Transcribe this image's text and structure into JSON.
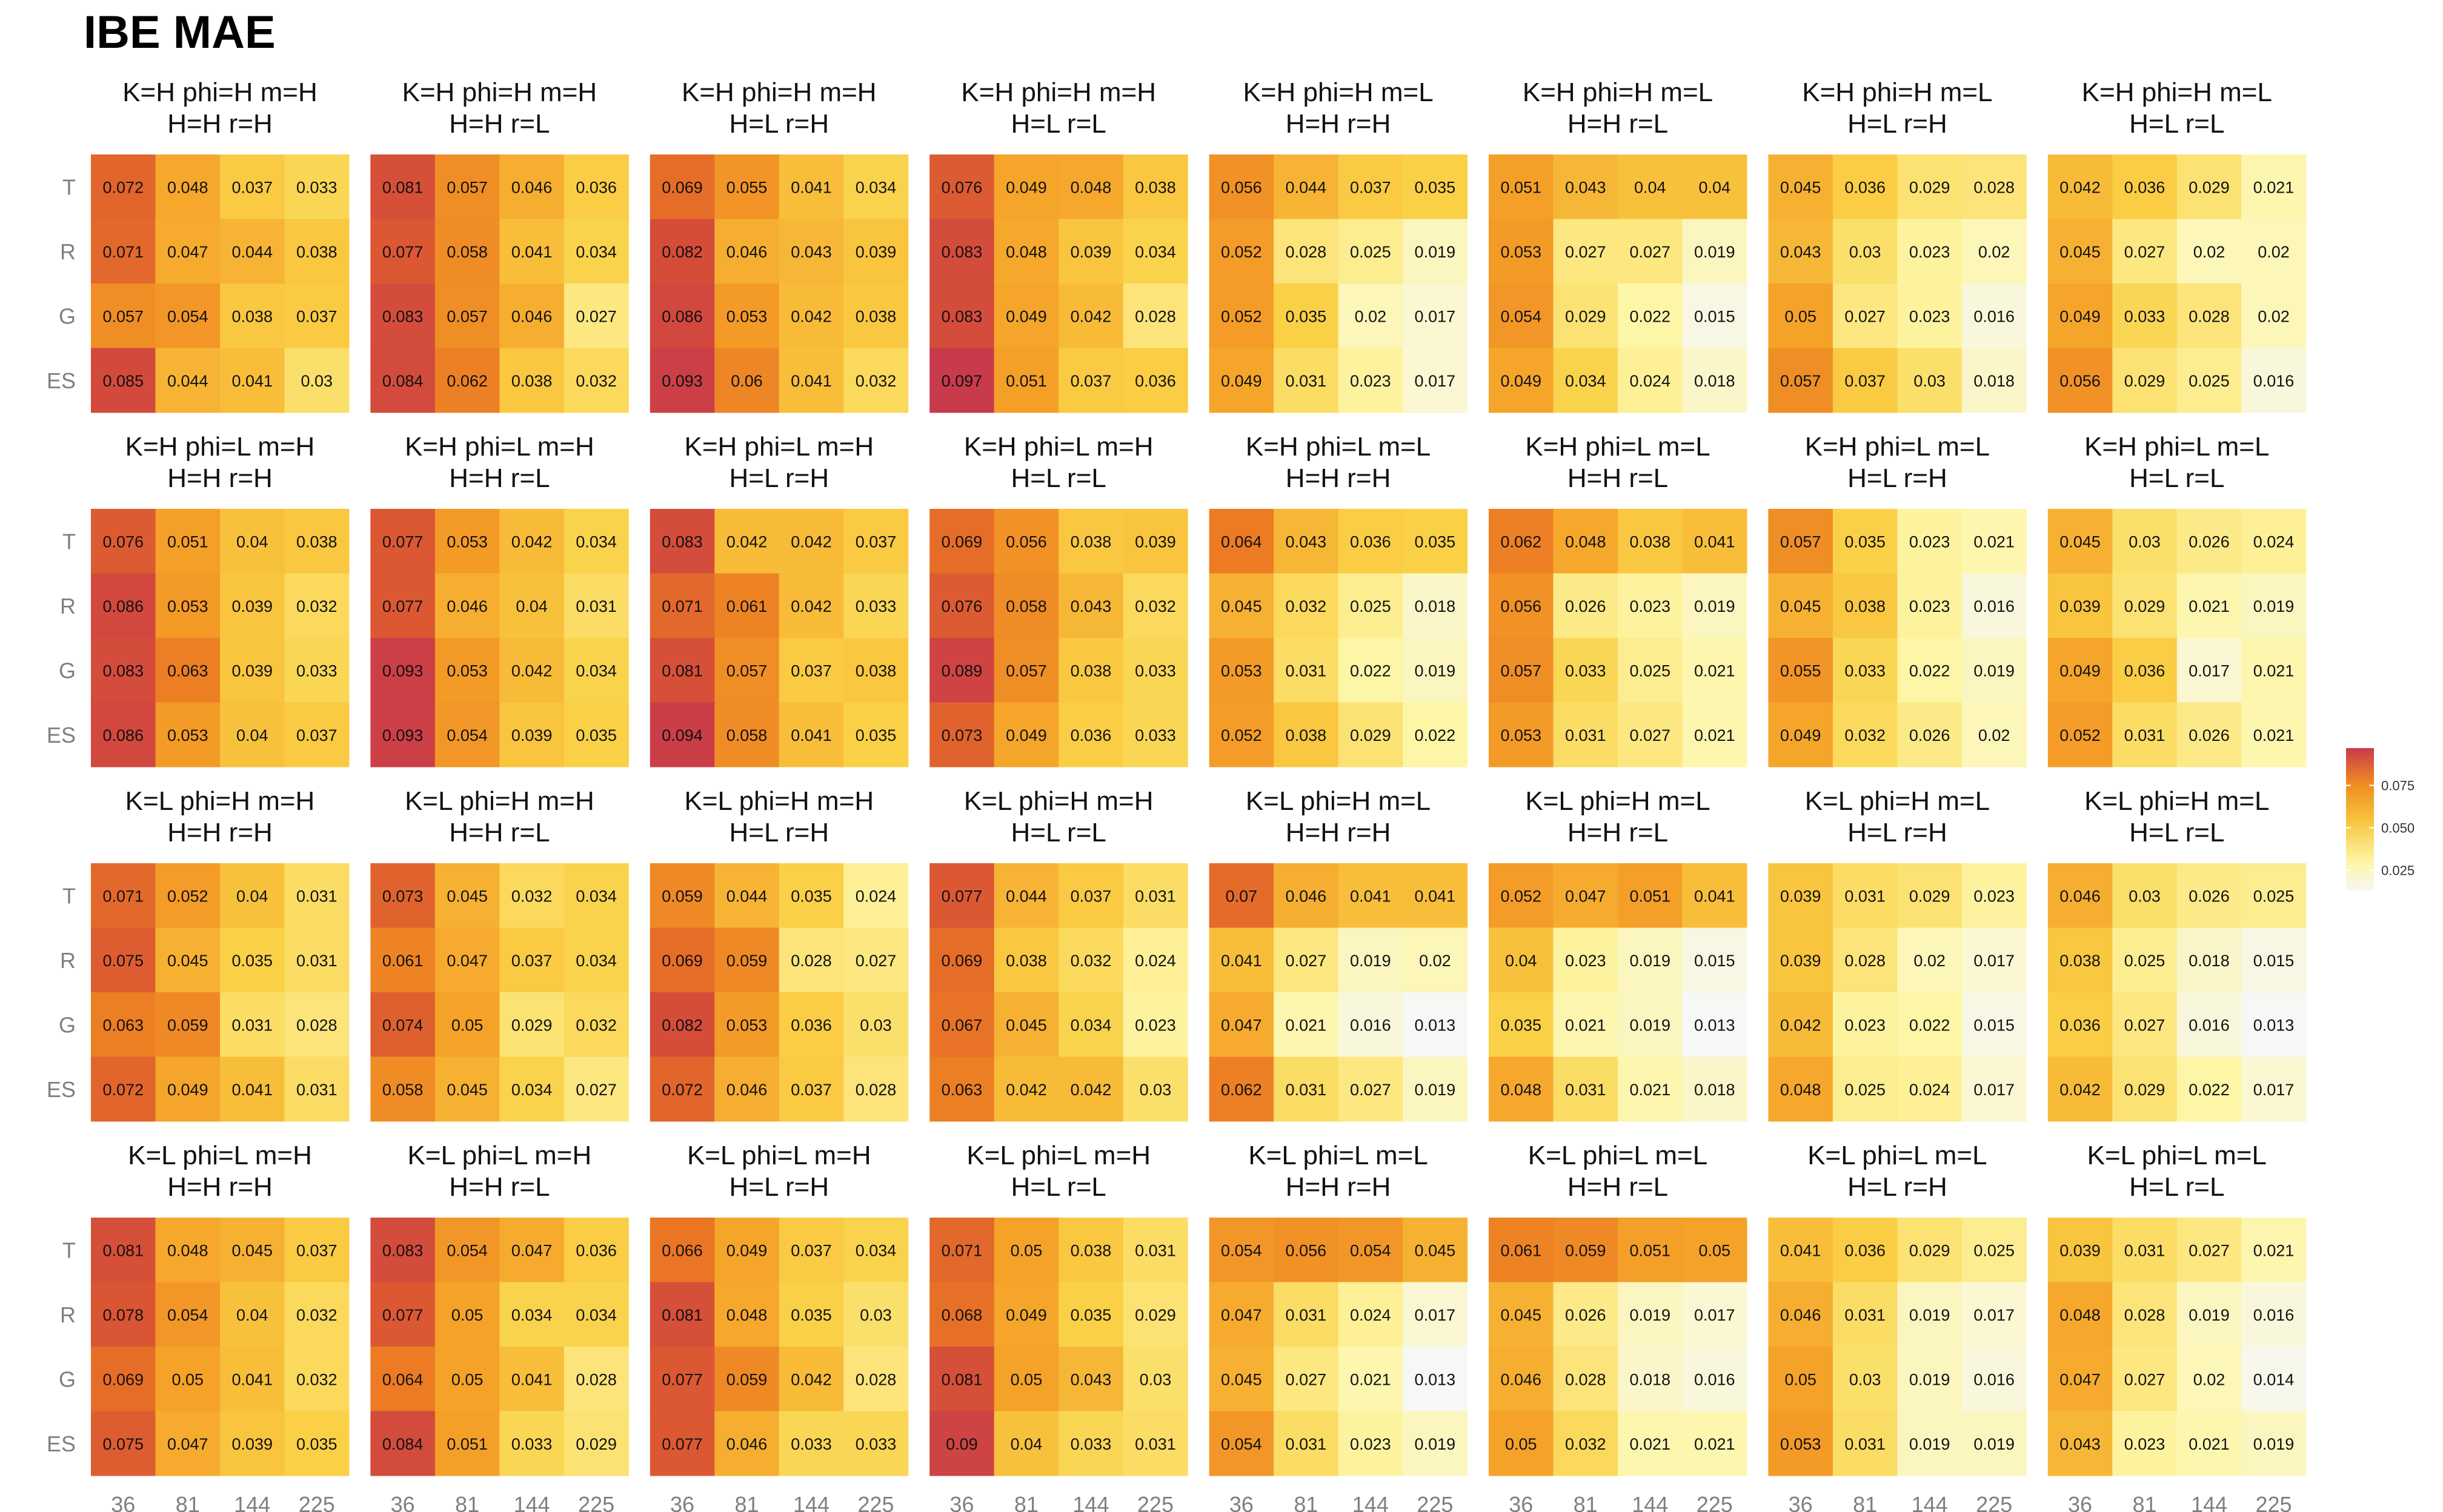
{
  "title": "IBE MAE",
  "chart_data": {
    "type": "heatmap",
    "title": "IBE MAE",
    "rows": [
      "T",
      "R",
      "G",
      "ES"
    ],
    "columns": [
      "36",
      "81",
      "144",
      "225"
    ],
    "color_scale": {
      "low": "#f7f7f5",
      "mid": "#f7951f",
      "high": "#c83a4c",
      "min": 0.013,
      "max": 0.097
    },
    "legend": {
      "placement": "right",
      "ticks": [
        "0.075",
        "0.050",
        "0.025"
      ],
      "tick_values": [
        0.075,
        0.05,
        0.025
      ]
    },
    "panels": [
      {
        "title1": "K=H phi=H m=H",
        "title2": "H=H r=H",
        "values": [
          [
            0.072,
            0.048,
            0.037,
            0.033
          ],
          [
            0.071,
            0.047,
            0.044,
            0.038
          ],
          [
            0.057,
            0.054,
            0.038,
            0.037
          ],
          [
            0.085,
            0.044,
            0.041,
            0.03
          ]
        ]
      },
      {
        "title1": "K=H phi=H m=H",
        "title2": "H=H r=L",
        "values": [
          [
            0.081,
            0.057,
            0.046,
            0.036
          ],
          [
            0.077,
            0.058,
            0.041,
            0.034
          ],
          [
            0.083,
            0.057,
            0.046,
            0.027
          ],
          [
            0.084,
            0.062,
            0.038,
            0.032
          ]
        ]
      },
      {
        "title1": "K=H phi=H m=H",
        "title2": "H=L r=H",
        "values": [
          [
            0.069,
            0.055,
            0.041,
            0.034
          ],
          [
            0.082,
            0.046,
            0.043,
            0.039
          ],
          [
            0.086,
            0.053,
            0.042,
            0.038
          ],
          [
            0.093,
            0.06,
            0.041,
            0.032
          ]
        ]
      },
      {
        "title1": "K=H phi=H m=H",
        "title2": "H=L r=L",
        "values": [
          [
            0.076,
            0.049,
            0.048,
            0.038
          ],
          [
            0.083,
            0.048,
            0.039,
            0.034
          ],
          [
            0.083,
            0.049,
            0.042,
            0.028
          ],
          [
            0.097,
            0.051,
            0.037,
            0.036
          ]
        ]
      },
      {
        "title1": "K=H phi=H m=L",
        "title2": "H=H r=H",
        "values": [
          [
            0.056,
            0.044,
            0.037,
            0.035
          ],
          [
            0.052,
            0.028,
            0.025,
            0.019
          ],
          [
            0.052,
            0.035,
            0.02,
            0.017
          ],
          [
            0.049,
            0.031,
            0.023,
            0.017
          ]
        ]
      },
      {
        "title1": "K=H phi=H m=L",
        "title2": "H=H r=L",
        "values": [
          [
            0.051,
            0.043,
            0.04,
            0.04
          ],
          [
            0.053,
            0.027,
            0.027,
            0.019
          ],
          [
            0.054,
            0.029,
            0.022,
            0.015
          ],
          [
            0.049,
            0.034,
            0.024,
            0.018
          ]
        ]
      },
      {
        "title1": "K=H phi=H m=L",
        "title2": "H=L r=H",
        "values": [
          [
            0.045,
            0.036,
            0.029,
            0.028
          ],
          [
            0.043,
            0.03,
            0.023,
            0.02
          ],
          [
            0.05,
            0.027,
            0.023,
            0.016
          ],
          [
            0.057,
            0.037,
            0.03,
            0.018
          ]
        ]
      },
      {
        "title1": "K=H phi=H m=L",
        "title2": "H=L r=L",
        "values": [
          [
            0.042,
            0.036,
            0.029,
            0.021
          ],
          [
            0.045,
            0.027,
            0.02,
            0.02
          ],
          [
            0.049,
            0.033,
            0.028,
            0.02
          ],
          [
            0.056,
            0.029,
            0.025,
            0.016
          ]
        ]
      },
      {
        "title1": "K=H phi=L m=H",
        "title2": "H=H r=H",
        "values": [
          [
            0.076,
            0.051,
            0.04,
            0.038
          ],
          [
            0.086,
            0.053,
            0.039,
            0.032
          ],
          [
            0.083,
            0.063,
            0.039,
            0.033
          ],
          [
            0.086,
            0.053,
            0.04,
            0.037
          ]
        ]
      },
      {
        "title1": "K=H phi=L m=H",
        "title2": "H=H r=L",
        "values": [
          [
            0.077,
            0.053,
            0.042,
            0.034
          ],
          [
            0.077,
            0.046,
            0.04,
            0.031
          ],
          [
            0.093,
            0.053,
            0.042,
            0.034
          ],
          [
            0.093,
            0.054,
            0.039,
            0.035
          ]
        ]
      },
      {
        "title1": "K=H phi=L m=H",
        "title2": "H=L r=H",
        "values": [
          [
            0.083,
            0.042,
            0.042,
            0.037
          ],
          [
            0.071,
            0.061,
            0.042,
            0.033
          ],
          [
            0.081,
            0.057,
            0.037,
            0.038
          ],
          [
            0.094,
            0.058,
            0.041,
            0.035
          ]
        ]
      },
      {
        "title1": "K=H phi=L m=H",
        "title2": "H=L r=L",
        "values": [
          [
            0.069,
            0.056,
            0.038,
            0.039
          ],
          [
            0.076,
            0.058,
            0.043,
            0.032
          ],
          [
            0.089,
            0.057,
            0.038,
            0.033
          ],
          [
            0.073,
            0.049,
            0.036,
            0.033
          ]
        ]
      },
      {
        "title1": "K=H phi=L m=L",
        "title2": "H=H r=H",
        "values": [
          [
            0.064,
            0.043,
            0.036,
            0.035
          ],
          [
            0.045,
            0.032,
            0.025,
            0.018
          ],
          [
            0.053,
            0.031,
            0.022,
            0.019
          ],
          [
            0.052,
            0.038,
            0.029,
            0.022
          ]
        ]
      },
      {
        "title1": "K=H phi=L m=L",
        "title2": "H=H r=L",
        "values": [
          [
            0.062,
            0.048,
            0.038,
            0.041
          ],
          [
            0.056,
            0.026,
            0.023,
            0.019
          ],
          [
            0.057,
            0.033,
            0.025,
            0.021
          ],
          [
            0.053,
            0.031,
            0.027,
            0.021
          ]
        ]
      },
      {
        "title1": "K=H phi=L m=L",
        "title2": "H=L r=H",
        "values": [
          [
            0.057,
            0.035,
            0.023,
            0.021
          ],
          [
            0.045,
            0.038,
            0.023,
            0.016
          ],
          [
            0.055,
            0.033,
            0.022,
            0.019
          ],
          [
            0.049,
            0.032,
            0.026,
            0.02
          ]
        ]
      },
      {
        "title1": "K=H phi=L m=L",
        "title2": "H=L r=L",
        "values": [
          [
            0.045,
            0.03,
            0.026,
            0.024
          ],
          [
            0.039,
            0.029,
            0.021,
            0.019
          ],
          [
            0.049,
            0.036,
            0.017,
            0.021
          ],
          [
            0.052,
            0.031,
            0.026,
            0.021
          ]
        ]
      },
      {
        "title1": "K=L phi=H m=H",
        "title2": "H=H r=H",
        "values": [
          [
            0.071,
            0.052,
            0.04,
            0.031
          ],
          [
            0.075,
            0.045,
            0.035,
            0.031
          ],
          [
            0.063,
            0.059,
            0.031,
            0.028
          ],
          [
            0.072,
            0.049,
            0.041,
            0.031
          ]
        ]
      },
      {
        "title1": "K=L phi=H m=H",
        "title2": "H=H r=L",
        "values": [
          [
            0.073,
            0.045,
            0.032,
            0.034
          ],
          [
            0.061,
            0.047,
            0.037,
            0.034
          ],
          [
            0.074,
            0.05,
            0.029,
            0.032
          ],
          [
            0.058,
            0.045,
            0.034,
            0.027
          ]
        ]
      },
      {
        "title1": "K=L phi=H m=H",
        "title2": "H=L r=H",
        "values": [
          [
            0.059,
            0.044,
            0.035,
            0.024
          ],
          [
            0.069,
            0.059,
            0.028,
            0.027
          ],
          [
            0.082,
            0.053,
            0.036,
            0.03
          ],
          [
            0.072,
            0.046,
            0.037,
            0.028
          ]
        ]
      },
      {
        "title1": "K=L phi=H m=H",
        "title2": "H=L r=L",
        "values": [
          [
            0.077,
            0.044,
            0.037,
            0.031
          ],
          [
            0.069,
            0.038,
            0.032,
            0.024
          ],
          [
            0.067,
            0.045,
            0.034,
            0.023
          ],
          [
            0.063,
            0.042,
            0.042,
            0.03
          ]
        ]
      },
      {
        "title1": "K=L phi=H m=L",
        "title2": "H=H r=H",
        "values": [
          [
            0.07,
            0.046,
            0.041,
            0.041
          ],
          [
            0.041,
            0.027,
            0.019,
            0.02
          ],
          [
            0.047,
            0.021,
            0.016,
            0.013
          ],
          [
            0.062,
            0.031,
            0.027,
            0.019
          ]
        ]
      },
      {
        "title1": "K=L phi=H m=L",
        "title2": "H=H r=L",
        "values": [
          [
            0.052,
            0.047,
            0.051,
            0.041
          ],
          [
            0.04,
            0.023,
            0.019,
            0.015
          ],
          [
            0.035,
            0.021,
            0.019,
            0.013
          ],
          [
            0.048,
            0.031,
            0.021,
            0.018
          ]
        ]
      },
      {
        "title1": "K=L phi=H m=L",
        "title2": "H=L r=H",
        "values": [
          [
            0.039,
            0.031,
            0.029,
            0.023
          ],
          [
            0.039,
            0.028,
            0.02,
            0.017
          ],
          [
            0.042,
            0.023,
            0.022,
            0.015
          ],
          [
            0.048,
            0.025,
            0.024,
            0.017
          ]
        ]
      },
      {
        "title1": "K=L phi=H m=L",
        "title2": "H=L r=L",
        "values": [
          [
            0.046,
            0.03,
            0.026,
            0.025
          ],
          [
            0.038,
            0.025,
            0.018,
            0.015
          ],
          [
            0.036,
            0.027,
            0.016,
            0.013
          ],
          [
            0.042,
            0.029,
            0.022,
            0.017
          ]
        ]
      },
      {
        "title1": "K=L phi=L m=H",
        "title2": "H=H r=H",
        "values": [
          [
            0.081,
            0.048,
            0.045,
            0.037
          ],
          [
            0.078,
            0.054,
            0.04,
            0.032
          ],
          [
            0.069,
            0.05,
            0.041,
            0.032
          ],
          [
            0.075,
            0.047,
            0.039,
            0.035
          ]
        ]
      },
      {
        "title1": "K=L phi=L m=H",
        "title2": "H=H r=L",
        "values": [
          [
            0.083,
            0.054,
            0.047,
            0.036
          ],
          [
            0.077,
            0.05,
            0.034,
            0.034
          ],
          [
            0.064,
            0.05,
            0.041,
            0.028
          ],
          [
            0.084,
            0.051,
            0.033,
            0.029
          ]
        ]
      },
      {
        "title1": "K=L phi=L m=H",
        "title2": "H=L r=H",
        "values": [
          [
            0.066,
            0.049,
            0.037,
            0.034
          ],
          [
            0.081,
            0.048,
            0.035,
            0.03
          ],
          [
            0.077,
            0.059,
            0.042,
            0.028
          ],
          [
            0.077,
            0.046,
            0.033,
            0.033
          ]
        ]
      },
      {
        "title1": "K=L phi=L m=H",
        "title2": "H=L r=L",
        "values": [
          [
            0.071,
            0.05,
            0.038,
            0.031
          ],
          [
            0.068,
            0.049,
            0.035,
            0.029
          ],
          [
            0.081,
            0.05,
            0.043,
            0.03
          ],
          [
            0.09,
            0.04,
            0.033,
            0.031
          ]
        ]
      },
      {
        "title1": "K=L phi=L m=L",
        "title2": "H=H r=H",
        "values": [
          [
            0.054,
            0.056,
            0.054,
            0.045
          ],
          [
            0.047,
            0.031,
            0.024,
            0.017
          ],
          [
            0.045,
            0.027,
            0.021,
            0.013
          ],
          [
            0.054,
            0.031,
            0.023,
            0.019
          ]
        ]
      },
      {
        "title1": "K=L phi=L m=L",
        "title2": "H=H r=L",
        "values": [
          [
            0.061,
            0.059,
            0.051,
            0.05
          ],
          [
            0.045,
            0.026,
            0.019,
            0.017
          ],
          [
            0.046,
            0.028,
            0.018,
            0.016
          ],
          [
            0.05,
            0.032,
            0.021,
            0.021
          ]
        ]
      },
      {
        "title1": "K=L phi=L m=L",
        "title2": "H=L r=H",
        "values": [
          [
            0.041,
            0.036,
            0.029,
            0.025
          ],
          [
            0.046,
            0.031,
            0.019,
            0.017
          ],
          [
            0.05,
            0.03,
            0.019,
            0.016
          ],
          [
            0.053,
            0.031,
            0.019,
            0.019
          ]
        ]
      },
      {
        "title1": "K=L phi=L m=L",
        "title2": "H=L r=L",
        "values": [
          [
            0.039,
            0.031,
            0.027,
            0.021
          ],
          [
            0.048,
            0.028,
            0.019,
            0.016
          ],
          [
            0.047,
            0.027,
            0.02,
            0.014
          ],
          [
            0.043,
            0.023,
            0.021,
            0.019
          ]
        ]
      }
    ]
  }
}
